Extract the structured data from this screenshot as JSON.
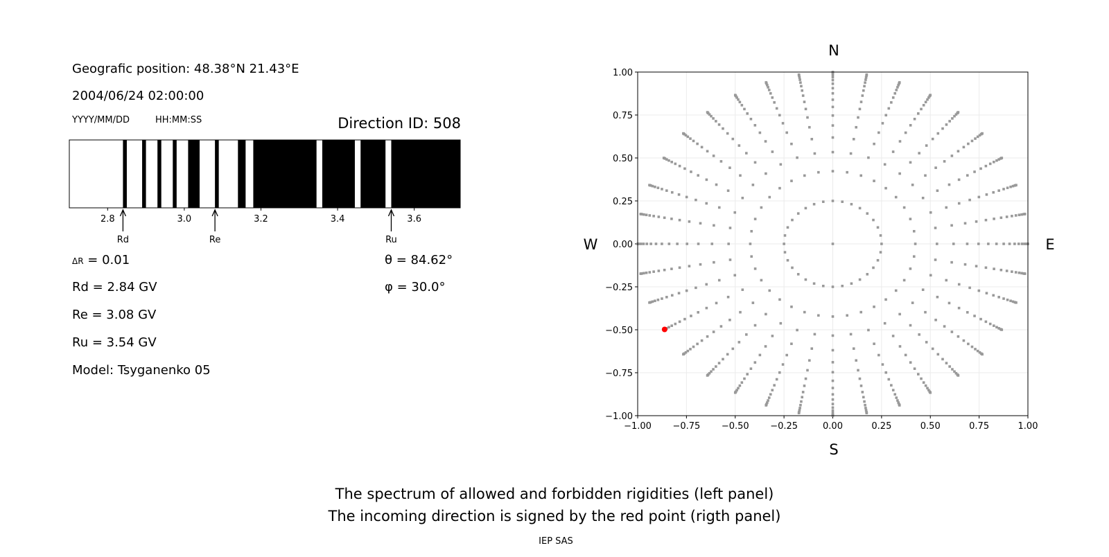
{
  "info": {
    "position": "Geografic position: 48.38°N 21.43°E",
    "datetime": "2004/06/24 02:00:00",
    "date_format": "YYYY/MM/DD",
    "time_format": "HH:MM:SS",
    "direction_id": "Direction ID: 508",
    "delta_r_symbol": "ΔR",
    "delta_r_value": " = 0.01",
    "rd": "Rd = 2.84 GV",
    "re": "Re = 3.08 GV",
    "ru": "Ru = 3.54 GV",
    "model": "Model: Tsyganenko 05",
    "theta": "θ = 84.62°",
    "phi": "φ = 30.0°"
  },
  "caption": {
    "line1": "The spectrum of allowed and forbidden rigidities (left panel)",
    "line2": "The incoming direction is signed by the red point (rigth panel)",
    "credit": "IEP SAS"
  },
  "chart_data": [
    {
      "type": "bar",
      "xlim": [
        2.7,
        3.72
      ],
      "xticks": [
        "2.8",
        "3.0",
        "3.2",
        "3.4",
        "3.6"
      ],
      "xtick_values": [
        2.8,
        3.0,
        3.2,
        3.4,
        3.6
      ],
      "forbidden_bands": [
        [
          2.84,
          2.85
        ],
        [
          2.89,
          2.9
        ],
        [
          2.93,
          2.94
        ],
        [
          2.97,
          2.98
        ],
        [
          3.01,
          3.04
        ],
        [
          3.08,
          3.09
        ],
        [
          3.14,
          3.16
        ],
        [
          3.18,
          3.345
        ],
        [
          3.36,
          3.445
        ],
        [
          3.46,
          3.525
        ],
        [
          3.54,
          3.72
        ]
      ],
      "markers": [
        {
          "label": "Rd",
          "value": 2.84
        },
        {
          "label": "Re",
          "value": 3.08
        },
        {
          "label": "Ru",
          "value": 3.54
        }
      ],
      "colors": {
        "forbidden": "#000000",
        "allowed": "#ffffff"
      }
    },
    {
      "type": "scatter",
      "xlim": [
        -1,
        1
      ],
      "ylim": [
        -1,
        1
      ],
      "ticks": [
        "−1.00",
        "−0.75",
        "−0.50",
        "−0.25",
        "0.00",
        "0.25",
        "0.50",
        "0.75",
        "1.00"
      ],
      "tick_values": [
        -1,
        -0.75,
        -0.5,
        -0.25,
        0,
        0.25,
        0.5,
        0.75,
        1
      ],
      "grid": true,
      "compass": {
        "north": "N",
        "south": "S",
        "west": "W",
        "east": "E"
      },
      "center_point": [
        0,
        0
      ],
      "ring": {
        "r": 0.25,
        "count": 32
      },
      "spokes": {
        "azimuth_step_deg": 10,
        "r": [
          0.423,
          0.534,
          0.619,
          0.689,
          0.747,
          0.797,
          0.839,
          0.876,
          0.906,
          0.932,
          0.953,
          0.97,
          0.983,
          0.993,
          0.998,
          1.0
        ]
      },
      "selected_point": {
        "x": -0.862,
        "y": -0.498
      },
      "colors": {
        "points": "#999999",
        "selected": "#ff0000"
      }
    }
  ]
}
